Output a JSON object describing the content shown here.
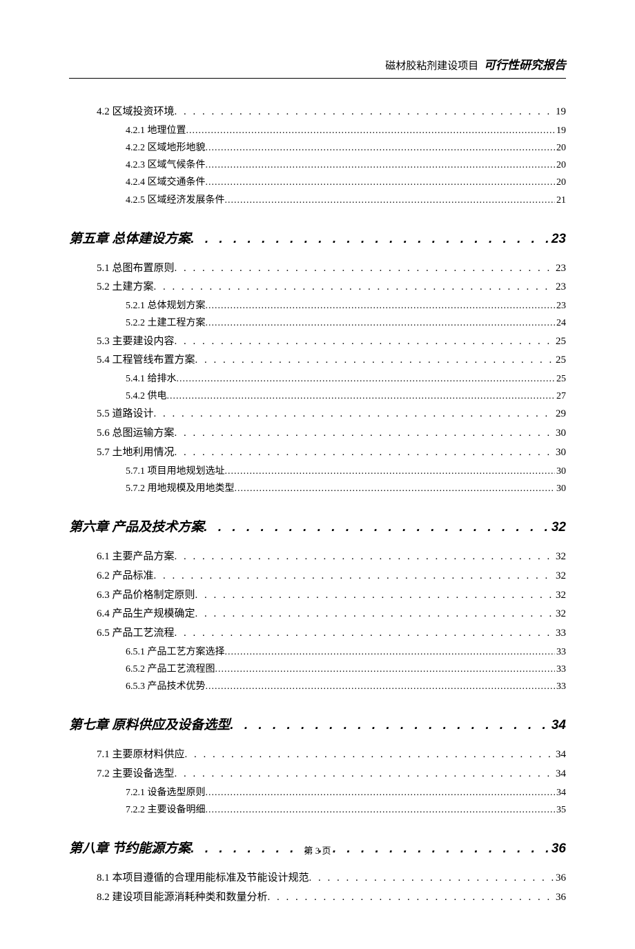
{
  "header": {
    "project_name": "磁材胶粘剂建设项目",
    "report_type": "可行性研究报告"
  },
  "footer": {
    "page_label": "第 3 页"
  },
  "dot_leader_chapter": ". . . . . . . . . . . . . . . . . . . . . . . . . . . . . . . . . . . . . . . . . . . . . . . . . . . . .",
  "dot_leader_section": ". . . . . . . . . . . . . . . . . . . . . . . . . . . . . . . . . . . . . . . . . . . . . . . . . . . . . . . . . . . . . . . . . . . . . . . . . . . . . . . . . . . . . . . . . . . .",
  "dot_leader_subsection": "...................................................................................................................................................",
  "toc": [
    {
      "level": "section",
      "title": "4.2 区域投资环境",
      "page": "19"
    },
    {
      "level": "subsection",
      "title": "4.2.1 地理位置",
      "page": "19"
    },
    {
      "level": "subsection",
      "title": "4.2.2 区域地形地貌",
      "page": "20"
    },
    {
      "level": "subsection",
      "title": "4.2.3 区域气候条件",
      "page": "20"
    },
    {
      "level": "subsection",
      "title": "4.2.4 区域交通条件",
      "page": "20"
    },
    {
      "level": "subsection",
      "title": "4.2.5 区域经济发展条件",
      "page": "21"
    },
    {
      "level": "chapter",
      "title": "第五章 总体建设方案",
      "page": "23"
    },
    {
      "level": "section",
      "title": "5.1 总图布置原则",
      "page": "23"
    },
    {
      "level": "section",
      "title": "5.2 土建方案",
      "page": "23"
    },
    {
      "level": "subsection",
      "title": "5.2.1 总体规划方案",
      "page": "23"
    },
    {
      "level": "subsection",
      "title": "5.2.2 土建工程方案",
      "page": "24"
    },
    {
      "level": "section",
      "title": "5.3 主要建设内容",
      "page": "25"
    },
    {
      "level": "section",
      "title": "5.4 工程管线布置方案",
      "page": "25"
    },
    {
      "level": "subsection",
      "title": "5.4.1 给排水",
      "page": "25"
    },
    {
      "level": "subsection",
      "title": "5.4.2 供电",
      "page": "27"
    },
    {
      "level": "section",
      "title": "5.5 道路设计",
      "page": "29"
    },
    {
      "level": "section",
      "title": "5.6 总图运输方案",
      "page": "30"
    },
    {
      "level": "section",
      "title": "5.7 土地利用情况",
      "page": "30"
    },
    {
      "level": "subsection",
      "title": "5.7.1 项目用地规划选址",
      "page": "30"
    },
    {
      "level": "subsection",
      "title": "5.7.2 用地规模及用地类型",
      "page": "30"
    },
    {
      "level": "chapter",
      "title": "第六章 产品及技术方案",
      "page": "32"
    },
    {
      "level": "section",
      "title": "6.1 主要产品方案",
      "page": "32"
    },
    {
      "level": "section",
      "title": "6.2 产品标准",
      "page": "32"
    },
    {
      "level": "section",
      "title": "6.3 产品价格制定原则",
      "page": "32"
    },
    {
      "level": "section",
      "title": "6.4 产品生产规模确定",
      "page": "32"
    },
    {
      "level": "section",
      "title": "6.5 产品工艺流程",
      "page": "33"
    },
    {
      "level": "subsection",
      "title": "6.5.1 产品工艺方案选择",
      "page": "33"
    },
    {
      "level": "subsection",
      "title": "6.5.2 产品工艺流程图",
      "page": "33"
    },
    {
      "level": "subsection",
      "title": "6.5.3 产品技术优势",
      "page": "33"
    },
    {
      "level": "chapter",
      "title": "第七章 原料供应及设备选型",
      "page": "34"
    },
    {
      "level": "section",
      "title": "7.1 主要原材料供应",
      "page": "34"
    },
    {
      "level": "section",
      "title": "7.2 主要设备选型",
      "page": "34"
    },
    {
      "level": "subsection",
      "title": "7.2.1 设备选型原则",
      "page": "34"
    },
    {
      "level": "subsection",
      "title": "7.2.2 主要设备明细",
      "page": "35"
    },
    {
      "level": "chapter",
      "title": "第八章 节约能源方案",
      "page": "36"
    },
    {
      "level": "section",
      "title": "8.1 本项目遵循的合理用能标准及节能设计规范",
      "page": "36"
    },
    {
      "level": "section",
      "title": "8.2 建设项目能源消耗种类和数量分析",
      "page": "36"
    }
  ]
}
